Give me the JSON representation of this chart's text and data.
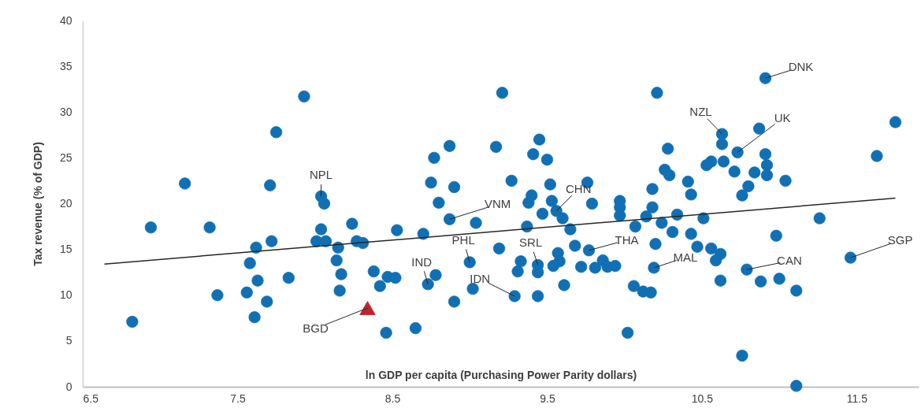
{
  "chart_data": {
    "type": "scatter",
    "xlabel": "ln GDP per capita (Purchasing Power Parity dollars)",
    "ylabel": "Tax revenue (% of GDP)",
    "xlim": [
      6.5,
      11.9
    ],
    "xticks": [
      6.5,
      7.5,
      8.5,
      9.5,
      10.5,
      11.5
    ],
    "ylim": [
      0,
      40
    ],
    "yticks": [
      0,
      5,
      10,
      15,
      20,
      25,
      30,
      35,
      40
    ],
    "grid": false,
    "marker": "circle",
    "series": [
      {
        "color": "#1170b4",
        "x": [
          6.82,
          6.94,
          7.16,
          7.32,
          7.37,
          7.62,
          7.58,
          7.63,
          7.56,
          7.61,
          7.69,
          7.72,
          7.71,
          7.75,
          7.83,
          7.93,
          8.04,
          8.06,
          8.04,
          8.01,
          8.07,
          8.15,
          8.14,
          8.17,
          8.16,
          8.24,
          8.27,
          8.31,
          8.38,
          8.42,
          8.47,
          8.52,
          8.46,
          8.53,
          8.65,
          8.7,
          8.73,
          8.78,
          8.75,
          8.77,
          8.87,
          8.8,
          8.9,
          8.87,
          9.04,
          8.9,
          9.0,
          9.02,
          9.17,
          9.21,
          9.19,
          9.27,
          9.29,
          9.33,
          9.31,
          9.37,
          9.38,
          9.4,
          9.41,
          9.45,
          9.5,
          9.47,
          9.52,
          9.53,
          9.44,
          9.44,
          9.44,
          9.56,
          9.6,
          9.65,
          9.57,
          9.58,
          9.54,
          9.61,
          9.68,
          9.76,
          9.79,
          9.77,
          9.72,
          9.81,
          9.86,
          9.89,
          9.97,
          9.97,
          9.97,
          9.94,
          10.02,
          10.07,
          10.06,
          10.12,
          10.17,
          10.14,
          10.18,
          10.18,
          10.21,
          10.2,
          10.19,
          10.24,
          10.26,
          10.29,
          10.28,
          10.31,
          10.34,
          10.41,
          10.43,
          10.43,
          10.47,
          10.51,
          10.53,
          10.56,
          10.56,
          10.59,
          10.62,
          10.62,
          10.63,
          10.63,
          10.64,
          10.71,
          10.73,
          10.87,
          10.91,
          10.8,
          10.76,
          10.84,
          10.91,
          10.92,
          10.92,
          11.04,
          10.79,
          10.88,
          10.98,
          11.0,
          11.11,
          10.76,
          11.11,
          11.26,
          11.46,
          11.63,
          11.75
        ],
        "values": [
          7.1,
          17.4,
          22.2,
          17.4,
          10.0,
          15.2,
          13.5,
          11.6,
          10.3,
          7.6,
          9.3,
          15.9,
          22.0,
          27.8,
          11.9,
          31.7,
          20.8,
          20.0,
          17.2,
          15.9,
          15.9,
          15.2,
          13.8,
          12.3,
          10.5,
          17.8,
          15.9,
          15.7,
          12.6,
          11.0,
          12.0,
          11.9,
          5.9,
          17.1,
          6.4,
          16.7,
          11.2,
          12.2,
          22.3,
          25.0,
          26.3,
          20.1,
          21.8,
          18.3,
          17.9,
          9.3,
          13.6,
          10.7,
          26.2,
          32.1,
          15.1,
          22.5,
          9.9,
          13.7,
          12.6,
          17.5,
          20.1,
          20.9,
          25.4,
          27.0,
          24.8,
          18.9,
          22.1,
          20.3,
          13.3,
          12.5,
          9.9,
          19.2,
          18.4,
          17.2,
          14.6,
          13.7,
          13.2,
          11.1,
          15.4,
          22.3,
          20.0,
          14.9,
          13.1,
          13.0,
          13.8,
          13.1,
          20.3,
          19.6,
          18.7,
          13.2,
          5.9,
          17.5,
          11.0,
          10.4,
          10.3,
          18.6,
          19.6,
          21.6,
          32.1,
          15.6,
          13.0,
          17.9,
          23.7,
          23.1,
          26.0,
          16.9,
          18.8,
          22.4,
          21.0,
          16.7,
          15.3,
          18.4,
          24.2,
          24.6,
          15.1,
          13.8,
          14.5,
          11.6,
          27.6,
          26.5,
          24.6,
          23.5,
          25.6,
          28.2,
          33.7,
          21.9,
          20.9,
          23.4,
          25.4,
          24.2,
          23.1,
          22.5,
          12.8,
          11.5,
          16.5,
          11.8,
          10.5,
          3.4,
          0.1,
          18.4,
          14.1,
          25.2,
          28.9
        ]
      },
      {
        "color": "#c0232b",
        "marker": "triangle",
        "x": [
          8.34
        ],
        "values": [
          8.6
        ]
      },
      {
        "type": "line",
        "color": "#262626",
        "line_style": "solid",
        "marker": "none",
        "x": [
          6.64,
          11.75
        ],
        "values": [
          13.4,
          20.6
        ]
      }
    ],
    "annotations": [
      {
        "text": "NPL",
        "x": 8.04,
        "y": 20.8
      },
      {
        "text": "VNM",
        "x": 8.87,
        "y": 18.3
      },
      {
        "text": "CHN",
        "x": 9.56,
        "y": 19.2
      },
      {
        "text": "PHL",
        "x": 9.0,
        "y": 13.6
      },
      {
        "text": "IND",
        "x": 8.73,
        "y": 11.2
      },
      {
        "text": "IDN",
        "x": 9.29,
        "y": 9.9
      },
      {
        "text": "SRL",
        "x": 9.44,
        "y": 13.3
      },
      {
        "text": "THA",
        "x": 9.77,
        "y": 14.9
      },
      {
        "text": "MAL",
        "x": 10.19,
        "y": 13.0
      },
      {
        "text": "CAN",
        "x": 10.79,
        "y": 12.8
      },
      {
        "text": "UK",
        "x": 10.73,
        "y": 25.6
      },
      {
        "text": "NZL",
        "x": 10.63,
        "y": 27.6
      },
      {
        "text": "DNK",
        "x": 10.91,
        "y": 33.7
      },
      {
        "text": "SGP",
        "x": 11.46,
        "y": 14.1
      },
      {
        "text": "BGD",
        "x": 8.34,
        "y": 8.6
      }
    ]
  }
}
